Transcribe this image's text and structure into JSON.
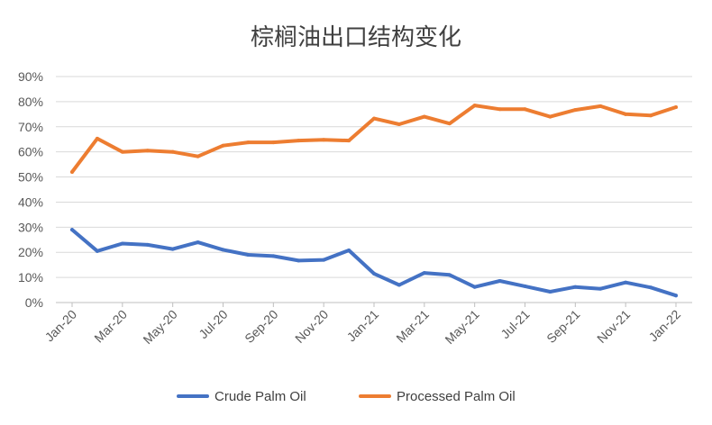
{
  "chart_data": {
    "type": "line",
    "title": "棕榈油出口结构变化",
    "xlabel": "",
    "ylabel": "",
    "x": [
      "Jan-20",
      "Feb-20",
      "Mar-20",
      "Apr-20",
      "May-20",
      "Jun-20",
      "Jul-20",
      "Aug-20",
      "Sep-20",
      "Oct-20",
      "Nov-20",
      "Dec-20",
      "Jan-21",
      "Feb-21",
      "Mar-21",
      "Apr-21",
      "May-21",
      "Jun-21",
      "Jul-21",
      "Aug-21",
      "Sep-21",
      "Oct-21",
      "Nov-21",
      "Dec-21",
      "Jan-22"
    ],
    "x_tick_labels": [
      "Jan-20",
      "Mar-20",
      "May-20",
      "Jul-20",
      "Sep-20",
      "Nov-20",
      "Jan-21",
      "Mar-21",
      "May-21",
      "Jul-21",
      "Sep-21",
      "Nov-21",
      "Jan-22"
    ],
    "y_tick_labels": [
      "0%",
      "10%",
      "20%",
      "30%",
      "40%",
      "50%",
      "60%",
      "70%",
      "80%",
      "90%"
    ],
    "ylim": [
      0,
      90
    ],
    "y_unit": "%",
    "grid": true,
    "legend_position": "bottom",
    "series": [
      {
        "name": "Crude Palm Oil",
        "color": "#4472c4",
        "values": [
          29,
          20.5,
          23.5,
          23,
          21.3,
          24,
          21,
          19,
          18.5,
          16.7,
          17,
          20.8,
          11.5,
          7,
          11.8,
          11,
          6.2,
          8.6,
          6.5,
          4.3,
          6.2,
          5.5,
          8,
          6,
          2.8
        ]
      },
      {
        "name": "Processed Palm Oil",
        "color": "#ed7d31",
        "values": [
          52,
          65.3,
          60,
          60.5,
          60,
          58.2,
          62.5,
          63.8,
          63.8,
          64.5,
          64.8,
          64.5,
          73.3,
          71,
          74,
          71.3,
          78.5,
          77,
          77,
          74,
          76.7,
          78.2,
          75,
          74.5,
          77.8
        ]
      }
    ]
  }
}
